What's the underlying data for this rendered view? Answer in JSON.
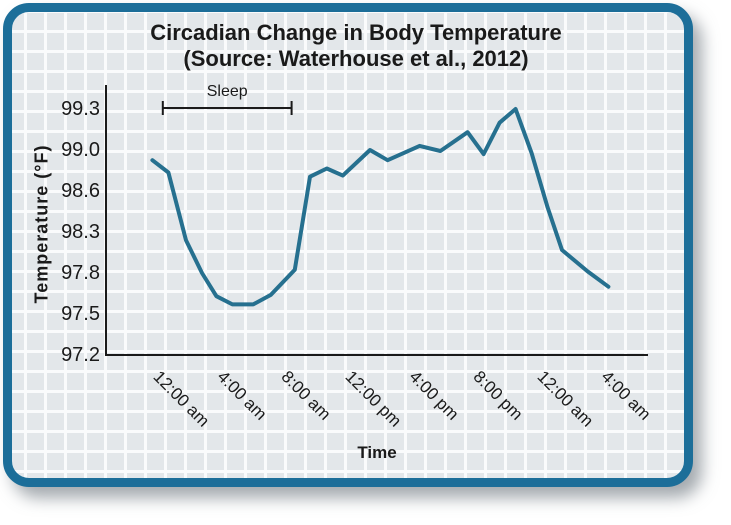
{
  "card": {
    "border_color": "#1c6e99",
    "surface_color": "#e3e7ea",
    "grid_line_color": "#fafbfc"
  },
  "chart_data": {
    "type": "line",
    "title": "Circadian Change in Body Temperature",
    "subtitle": "(Source: Waterhouse et al., 2012)",
    "xlabel": "Time",
    "ylabel": "Temperature (°F)",
    "x_tick_labels": [
      "12:00 am",
      "4:00 am",
      "8:00 am",
      "12:00 pm",
      "4:00 pm",
      "8:00 pm",
      "12:00 am",
      "4:00 am"
    ],
    "hours_per_x_tick": 4,
    "y_tick_labels": [
      "99.3",
      "99.0",
      "98.6",
      "98.3",
      "97.8",
      "97.5",
      "97.2"
    ],
    "y_tick_values": [
      99.3,
      99.0,
      98.6,
      98.3,
      97.8,
      97.5,
      97.2
    ],
    "grid": true,
    "legend": "none",
    "line_color": "#26708f",
    "axis_color": "#1a1a1a",
    "annotation": {
      "label": "Sleep",
      "start_hour": -0.45,
      "end_hour": 7.6
    },
    "series": [
      {
        "points_hour_temp": [
          [
            -1.1,
            98.9
          ],
          [
            -0.1,
            98.78
          ],
          [
            1.0,
            98.2
          ],
          [
            2.0,
            97.8
          ],
          [
            2.9,
            97.63
          ],
          [
            3.9,
            97.57
          ],
          [
            5.2,
            97.57
          ],
          [
            6.3,
            97.64
          ],
          [
            7.8,
            97.84
          ],
          [
            8.75,
            98.74
          ],
          [
            9.8,
            98.82
          ],
          [
            10.8,
            98.75
          ],
          [
            12.5,
            99.0
          ],
          [
            13.6,
            98.9
          ],
          [
            15.6,
            99.03
          ],
          [
            16.9,
            98.99
          ],
          [
            18.6,
            99.13
          ],
          [
            19.6,
            98.96
          ],
          [
            20.6,
            99.2
          ],
          [
            21.6,
            99.3
          ],
          [
            22.6,
            98.97
          ],
          [
            23.6,
            98.48
          ],
          [
            24.5,
            98.08
          ],
          [
            26.1,
            97.82
          ],
          [
            27.4,
            97.7
          ]
        ]
      }
    ]
  }
}
